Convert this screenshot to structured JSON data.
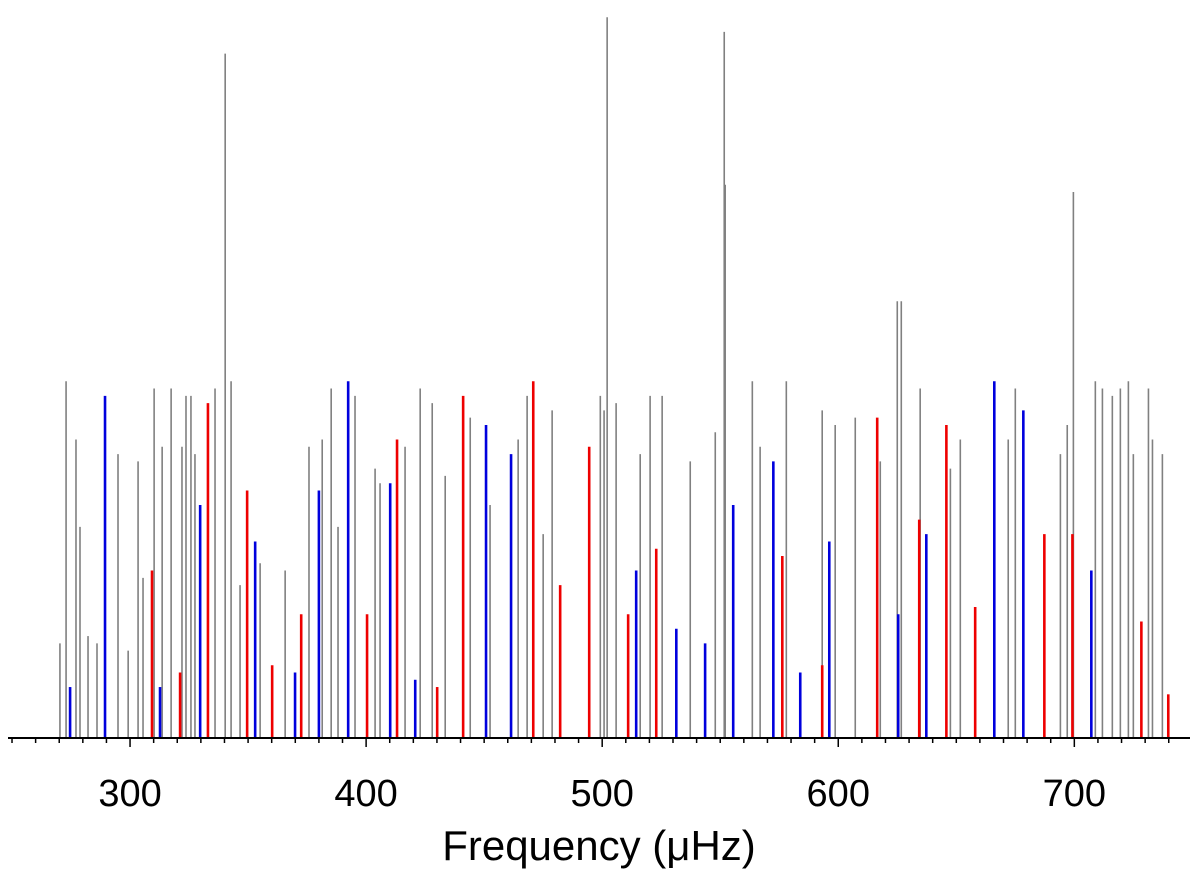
{
  "chart_data": {
    "type": "stem",
    "x_label": "Frequency (μHz)",
    "xlim": [
      248.3,
      749
    ],
    "ylim": [
      0,
      1
    ],
    "xticks": [
      300,
      400,
      500,
      600,
      700
    ],
    "xminor_ticks": [
      250,
      260,
      270,
      280,
      290,
      310,
      320,
      330,
      340,
      350,
      360,
      370,
      380,
      390,
      410,
      420,
      430,
      440,
      450,
      460,
      470,
      480,
      490,
      510,
      520,
      530,
      540,
      550,
      560,
      570,
      580,
      590,
      610,
      620,
      630,
      640,
      650,
      660,
      670,
      680,
      690,
      710,
      720,
      730,
      740
    ],
    "series": [
      {
        "color": "#808080",
        "x": [
          270.3,
          272.9,
          277.1,
          278.8,
          282.2,
          286,
          294.9,
          299.2,
          303.4,
          305.5,
          310.2,
          313.6,
          317.4,
          322,
          323.7,
          325.8,
          327.5,
          336,
          340.3,
          342.8,
          346.6,
          355.1,
          365.7,
          375.8,
          381.4,
          385.2,
          388.1,
          395.3,
          403.8,
          405.9,
          416.5,
          422.9,
          428,
          433.5,
          444.1,
          452.5,
          464.4,
          468.2,
          475,
          478.8,
          499.2,
          500.8,
          502.1,
          505.9,
          516.1,
          520.3,
          525.4,
          537.3,
          547.9,
          551.7,
          552.1,
          563.6,
          566.9,
          578,
          593.2,
          598.7,
          607.2,
          617.8,
          625,
          626.7,
          634.7,
          647.5,
          651.7,
          672,
          675,
          694.1,
          697,
          699.6,
          708.9,
          711.9,
          716.1,
          719.5,
          722.9,
          725,
          731.4,
          733.1,
          737.3
        ],
        "values": [
          0.13,
          0.49,
          0.41,
          0.29,
          0.14,
          0.13,
          0.39,
          0.12,
          0.38,
          0.22,
          0.48,
          0.4,
          0.48,
          0.4,
          0.47,
          0.47,
          0.39,
          0.48,
          0.94,
          0.49,
          0.21,
          0.24,
          0.23,
          0.4,
          0.41,
          0.48,
          0.29,
          0.47,
          0.37,
          0.35,
          0.4,
          0.48,
          0.46,
          0.36,
          0.44,
          0.32,
          0.41,
          0.47,
          0.28,
          0.45,
          0.47,
          0.45,
          0.99,
          0.46,
          0.39,
          0.47,
          0.47,
          0.38,
          0.42,
          0.97,
          0.76,
          0.49,
          0.4,
          0.49,
          0.45,
          0.43,
          0.44,
          0.38,
          0.6,
          0.6,
          0.48,
          0.37,
          0.41,
          0.41,
          0.48,
          0.39,
          0.43,
          0.75,
          0.49,
          0.48,
          0.47,
          0.48,
          0.49,
          0.39,
          0.48,
          0.41,
          0.39
        ]
      },
      {
        "color": "#0000dd",
        "x": [
          274.6,
          289.4,
          312.7,
          329.7,
          353,
          369.9,
          380,
          392.4,
          410.2,
          420.8,
          450.8,
          461.4,
          514.4,
          531.4,
          543.6,
          555.5,
          572.5,
          583.9,
          596.2,
          625.4,
          637.3,
          666.1,
          678.4,
          707.2
        ],
        "values": [
          0.07,
          0.47,
          0.07,
          0.32,
          0.27,
          0.09,
          0.34,
          0.49,
          0.35,
          0.08,
          0.43,
          0.39,
          0.23,
          0.15,
          0.13,
          0.32,
          0.38,
          0.09,
          0.27,
          0.17,
          0.28,
          0.49,
          0.45,
          0.23
        ]
      },
      {
        "color": "#ee0000",
        "x": [
          309.3,
          321.2,
          333,
          349.6,
          360.2,
          372.5,
          400.4,
          413.1,
          430.1,
          441.1,
          470.8,
          482.2,
          494.5,
          511,
          522.9,
          576.3,
          593.2,
          616.5,
          634.3,
          645.8,
          658,
          687.3,
          699.2,
          728.4,
          739.8
        ],
        "values": [
          0.23,
          0.09,
          0.46,
          0.34,
          0.1,
          0.17,
          0.17,
          0.41,
          0.07,
          0.47,
          0.49,
          0.21,
          0.4,
          0.17,
          0.26,
          0.25,
          0.1,
          0.44,
          0.3,
          0.43,
          0.18,
          0.28,
          0.28,
          0.16,
          0.06
        ]
      }
    ]
  }
}
